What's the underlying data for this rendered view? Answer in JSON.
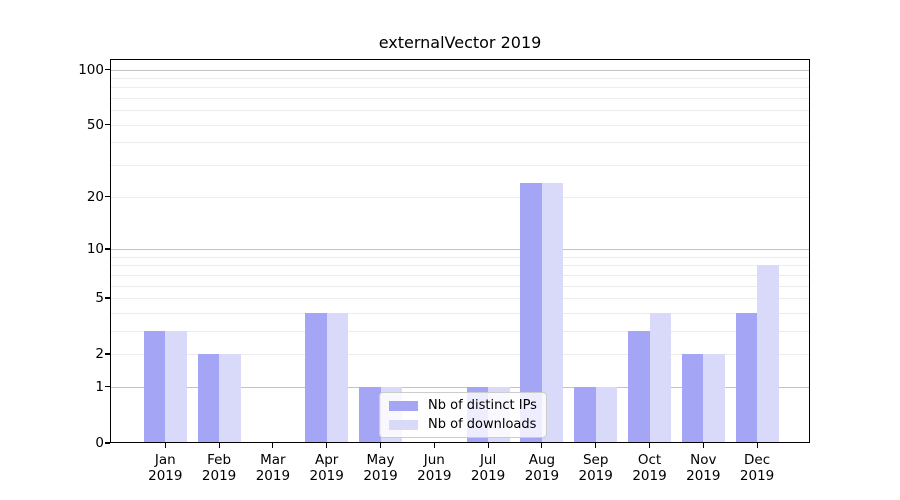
{
  "title": "externalVector 2019",
  "chart_data": {
    "type": "bar",
    "title": "externalVector 2019",
    "categories": [
      "Jan 2019",
      "Feb 2019",
      "Mar 2019",
      "Apr 2019",
      "May 2019",
      "Jun 2019",
      "Jul 2019",
      "Aug 2019",
      "Sep 2019",
      "Oct 2019",
      "Nov 2019",
      "Dec 2019"
    ],
    "series": [
      {
        "name": "Nb of distinct IPs",
        "color": "#a5a5f6",
        "values": [
          3,
          2,
          0,
          4,
          1,
          0,
          1,
          24,
          1,
          3,
          2,
          4
        ]
      },
      {
        "name": "Nb of downloads",
        "color": "#d9d9f9",
        "values": [
          3,
          2,
          0,
          4,
          1,
          0,
          1,
          24,
          1,
          4,
          2,
          8
        ]
      }
    ],
    "yscale": "log1p",
    "ylim": [
      0,
      114
    ],
    "yticks": [
      0,
      1,
      2,
      5,
      10,
      20,
      50,
      100
    ],
    "major_gridlines": [
      1,
      10,
      100
    ],
    "minor_gridlines": [
      2,
      3,
      4,
      5,
      6,
      7,
      8,
      9,
      20,
      30,
      40,
      50,
      60,
      70,
      80,
      90
    ],
    "grid": true,
    "legend_position": "lower center",
    "colors": {
      "major_grid": "#c3c3c3",
      "minor_grid": "#ececec",
      "spine": "#000000",
      "text": "#000000"
    }
  }
}
